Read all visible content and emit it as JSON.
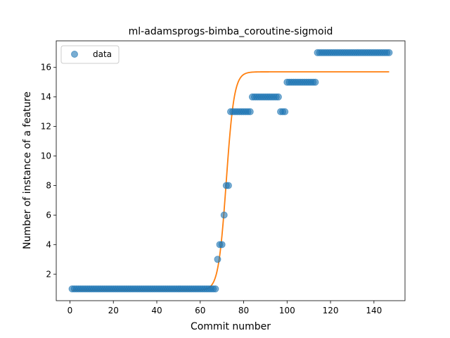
{
  "chart_data": {
    "type": "scatter",
    "title": "ml-adamsprogs-bimba_coroutine-sigmoid",
    "xlabel": "Commit number",
    "ylabel": "Number of instance of a feature",
    "xlim": [
      -6.3,
      154.3
    ],
    "ylim": [
      0.2,
      17.8
    ],
    "xticks": [
      0,
      20,
      40,
      60,
      80,
      100,
      120,
      140
    ],
    "yticks": [
      2,
      4,
      6,
      8,
      10,
      12,
      14,
      16
    ],
    "grid": false,
    "legend": {
      "placement": "top-left",
      "entries": [
        "data"
      ]
    },
    "colors": {
      "data": "#1f77b4",
      "fit": "#ff7f0e"
    },
    "series": [
      {
        "name": "data",
        "kind": "points",
        "segments": [
          {
            "x_start": 1,
            "x_end": 67,
            "y": 1
          },
          {
            "x": 68,
            "y": 3
          },
          {
            "x": 69,
            "y": 4
          },
          {
            "x": 70,
            "y": 4
          },
          {
            "x": 71,
            "y": 6
          },
          {
            "x": 72,
            "y": 8
          },
          {
            "x": 73,
            "y": 8
          },
          {
            "x_start": 74,
            "x_end": 83,
            "y": 13
          },
          {
            "x_start": 84,
            "x_end": 96,
            "y": 14
          },
          {
            "x_start": 97,
            "x_end": 99,
            "y": 13
          },
          {
            "x_start": 100,
            "x_end": 113,
            "y": 15
          },
          {
            "x_start": 114,
            "x_end": 147,
            "y": 17
          }
        ]
      },
      {
        "kind": "sigmoid-fit",
        "x_range": [
          1,
          147
        ],
        "params": {
          "L": 14.8,
          "k": 0.55,
          "x0": 72,
          "b": 0.9
        }
      }
    ]
  }
}
